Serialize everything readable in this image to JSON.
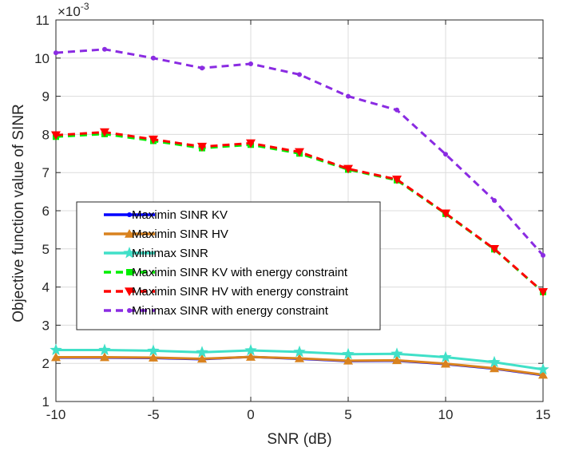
{
  "chart_data": {
    "type": "line",
    "xlabel": "SNR (dB)",
    "ylabel": "Objective function value of SINR",
    "y_multiplier": "×10",
    "y_exponent": "-3",
    "xlim": [
      -10,
      15
    ],
    "ylim": [
      1,
      11
    ],
    "x_ticks": [
      -10,
      -5,
      0,
      5,
      10,
      15
    ],
    "y_ticks": [
      1,
      2,
      3,
      4,
      5,
      6,
      7,
      8,
      9,
      10,
      11
    ],
    "grid": true,
    "legend_position": "center-left",
    "x": [
      -10,
      -7.5,
      -5,
      -2.5,
      0,
      2.5,
      5,
      7.5,
      10,
      12.5,
      15
    ],
    "series": [
      {
        "name": "Maximin SINR KV",
        "color": "#0000ff",
        "style": "solid",
        "marker": "circle",
        "values": [
          2.15,
          2.15,
          2.14,
          2.11,
          2.17,
          2.12,
          2.06,
          2.07,
          1.98,
          1.86,
          1.69
        ]
      },
      {
        "name": "Maximin SINR HV",
        "color": "#d9821e",
        "style": "solid",
        "marker": "triangle-up",
        "values": [
          2.16,
          2.16,
          2.15,
          2.12,
          2.17,
          2.13,
          2.07,
          2.08,
          1.99,
          1.87,
          1.7
        ]
      },
      {
        "name": "Minimax SINR",
        "color": "#40e0c8",
        "style": "solid",
        "marker": "star",
        "values": [
          2.35,
          2.35,
          2.33,
          2.29,
          2.34,
          2.3,
          2.24,
          2.25,
          2.16,
          2.03,
          1.84
        ]
      },
      {
        "name": "Maximin SINR KV with energy constraint",
        "color": "#00ee00",
        "style": "dashed",
        "marker": "square",
        "values": [
          7.94,
          8.01,
          7.83,
          7.64,
          7.73,
          7.5,
          7.08,
          6.8,
          5.92,
          4.99,
          3.87
        ]
      },
      {
        "name": "Maximin SINR HV with energy constraint",
        "color": "#ff0000",
        "style": "dashed",
        "marker": "triangle-down",
        "values": [
          7.98,
          8.06,
          7.87,
          7.68,
          7.77,
          7.54,
          7.1,
          6.82,
          5.93,
          5.0,
          3.87
        ]
      },
      {
        "name": "Minimax SINR with energy constraint",
        "color": "#8a2be2",
        "style": "dashed",
        "marker": "circle",
        "values": [
          10.14,
          10.23,
          10.0,
          9.74,
          9.85,
          9.57,
          9.0,
          8.64,
          7.48,
          6.27,
          4.83
        ]
      }
    ]
  }
}
